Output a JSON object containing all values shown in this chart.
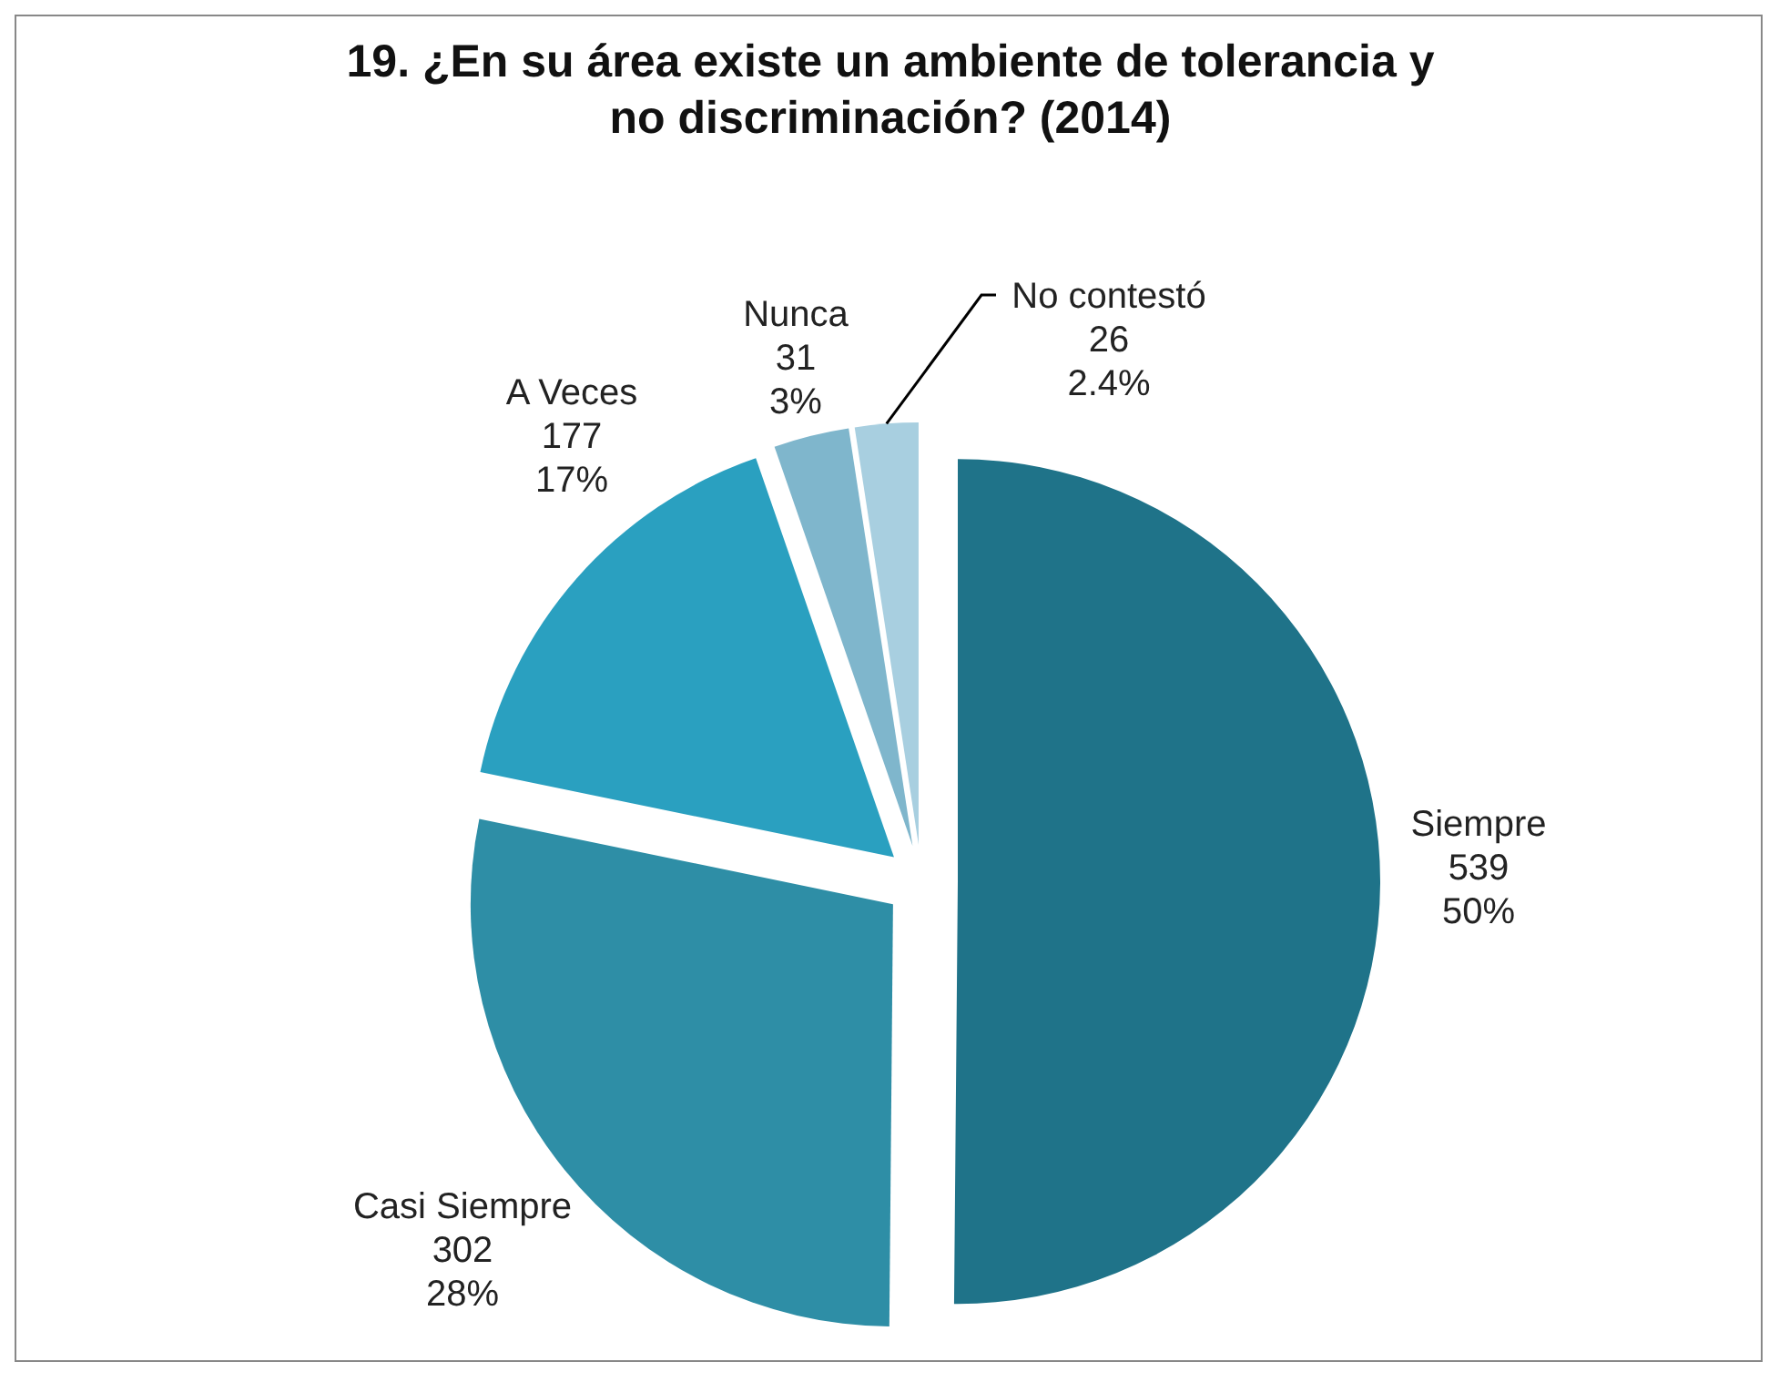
{
  "chart_data": {
    "type": "pie",
    "title": "19. ¿En su área existe un ambiente de tolerancia y no discriminación? (2014)",
    "categories": [
      "Siempre",
      "Casi Siempre",
      "A Veces",
      "Nunca",
      "No contestó"
    ],
    "values": [
      539,
      302,
      177,
      31,
      26
    ],
    "value_labels": [
      "539\n50%",
      "302\n28%",
      "177\n17%",
      "31\n3%",
      "26\n2.4%"
    ],
    "colors": [
      "#1f7389",
      "#2e8ea6",
      "#2aa0c0",
      "#7fb6cc",
      "#a8cfe0"
    ]
  }
}
